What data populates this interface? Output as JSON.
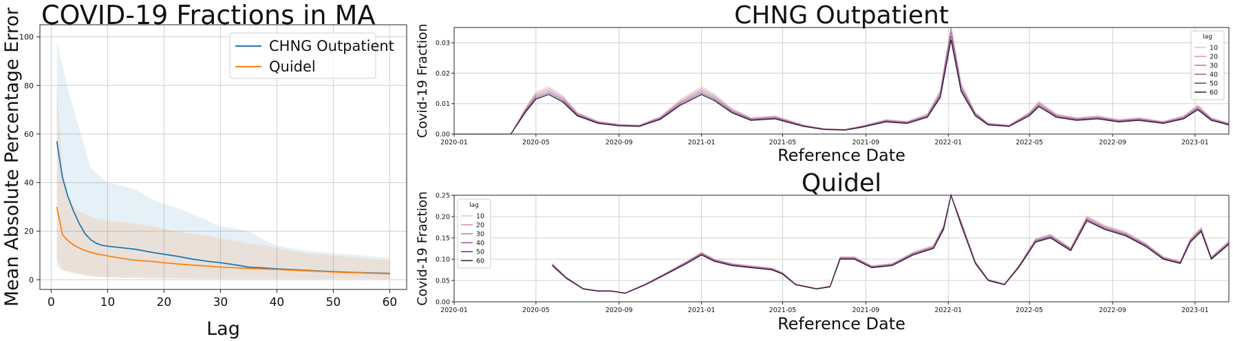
{
  "chart_data": [
    {
      "type": "line",
      "title": "COVID-19 Fractions in MA",
      "xlabel": "Lag",
      "ylabel": "Mean Absolute Percentage Error",
      "xlim": [
        -2,
        63
      ],
      "ylim": [
        -4,
        105
      ],
      "xticks": [
        0,
        10,
        20,
        30,
        40,
        50,
        60
      ],
      "yticks": [
        0,
        20,
        40,
        60,
        80,
        100
      ],
      "grid": true,
      "legend": "top-right",
      "series": [
        {
          "name": "CHNG Outpatient",
          "color": "#1f77b4",
          "x": [
            1,
            2,
            3,
            4,
            5,
            6,
            7,
            8,
            9,
            10,
            12,
            15,
            18,
            20,
            22,
            25,
            28,
            30,
            33,
            35,
            38,
            40,
            45,
            50,
            55,
            60
          ],
          "y": [
            57,
            42,
            34,
            28,
            23,
            19,
            16.5,
            15,
            14.2,
            13.8,
            13.3,
            12.5,
            11.2,
            10.5,
            9.8,
            8.5,
            7.5,
            7.0,
            6.0,
            5.2,
            4.8,
            4.5,
            3.9,
            3.3,
            2.9,
            2.6
          ],
          "upper": [
            98,
            88,
            78,
            70,
            62,
            54,
            46,
            44,
            42,
            40,
            39,
            37,
            33,
            31,
            30,
            27,
            24,
            22,
            21,
            20,
            16,
            14,
            12,
            11,
            10,
            9
          ],
          "lower": [
            5,
            4,
            3.5,
            3,
            2.5,
            2,
            1.5,
            1.2,
            1,
            1,
            0.8,
            0.7,
            0.6,
            0.5,
            0.5,
            0.4,
            0.4,
            0.3,
            0.3,
            0.3,
            0.3,
            0.3,
            0.3,
            0.3,
            0.3,
            0.3
          ]
        },
        {
          "name": "Quidel",
          "color": "#ff7f0e",
          "x": [
            1,
            2,
            3,
            4,
            5,
            6,
            7,
            8,
            9,
            10,
            12,
            15,
            18,
            20,
            22,
            25,
            28,
            30,
            33,
            35,
            38,
            40,
            45,
            50,
            55,
            60
          ],
          "y": [
            30,
            18.5,
            16,
            14.3,
            13,
            12,
            11.3,
            10.7,
            10.2,
            9.8,
            9.0,
            8.0,
            7.5,
            7.0,
            6.6,
            6.0,
            5.6,
            5.2,
            4.9,
            4.7,
            4.4,
            4.2,
            3.7,
            3.2,
            2.8,
            2.4
          ],
          "upper": [
            80,
            45,
            35,
            30,
            28,
            27,
            26,
            25,
            25,
            24,
            24,
            23,
            22,
            21,
            20,
            19,
            18,
            17,
            16,
            15,
            14,
            13,
            11,
            10,
            9,
            8
          ],
          "lower": [
            8,
            4,
            3,
            2.5,
            2,
            1.8,
            1.6,
            1.4,
            1.2,
            1,
            0.9,
            0.8,
            0.7,
            0.6,
            0.5,
            0.5,
            0.4,
            0.4,
            0.4,
            0.3,
            0.3,
            0.3,
            0.3,
            0.3,
            0.3,
            0.3
          ]
        }
      ]
    },
    {
      "type": "line",
      "title": "CHNG Outpatient",
      "xlabel": "Reference Date",
      "ylabel": "Covid-19 Fraction",
      "xlim": [
        "2020-01-01",
        "2023-02-20"
      ],
      "ylim": [
        0,
        0.035
      ],
      "xticks": [
        "2020-01",
        "2020-05",
        "2020-09",
        "2021-01",
        "2021-05",
        "2021-09",
        "2022-01",
        "2022-05",
        "2022-09",
        "2023-01"
      ],
      "yticks": [
        "0.00",
        "0.01",
        "0.02",
        "0.03"
      ],
      "grid": true,
      "legend": "top-right",
      "legend_title": "lag",
      "lags": [
        "10",
        "20",
        "30",
        "40",
        "50",
        "60"
      ],
      "lag_colors": [
        "#ebc0c0",
        "#d88fa0",
        "#b8739a",
        "#8f5a8f",
        "#5f3a6d",
        "#2d1b3d"
      ],
      "x": [
        "2020-01-01",
        "2020-03-25",
        "2020-04-15",
        "2020-05-01",
        "2020-05-20",
        "2020-06-10",
        "2020-07-01",
        "2020-08-01",
        "2020-09-01",
        "2020-10-01",
        "2020-11-01",
        "2020-12-01",
        "2021-01-01",
        "2021-01-20",
        "2021-02-15",
        "2021-03-15",
        "2021-04-20",
        "2021-05-10",
        "2021-06-01",
        "2021-07-01",
        "2021-08-01",
        "2021-08-25",
        "2021-10-01",
        "2021-11-01",
        "2021-12-01",
        "2021-12-20",
        "2022-01-05",
        "2022-01-20",
        "2022-02-10",
        "2022-03-01",
        "2022-04-01",
        "2022-05-01",
        "2022-05-15",
        "2022-06-10",
        "2022-07-10",
        "2022-08-10",
        "2022-09-10",
        "2022-10-10",
        "2022-11-15",
        "2022-12-15",
        "2023-01-05",
        "2023-01-25",
        "2023-02-20"
      ],
      "y": [
        0.0,
        0.0,
        0.007,
        0.0115,
        0.013,
        0.0105,
        0.006,
        0.0035,
        0.0027,
        0.0025,
        0.0048,
        0.0095,
        0.013,
        0.011,
        0.007,
        0.0045,
        0.005,
        0.0038,
        0.0025,
        0.0015,
        0.0013,
        0.0022,
        0.004,
        0.0035,
        0.0055,
        0.012,
        0.031,
        0.014,
        0.006,
        0.003,
        0.0025,
        0.006,
        0.009,
        0.0055,
        0.0045,
        0.005,
        0.004,
        0.0045,
        0.0035,
        0.005,
        0.008,
        0.0045,
        0.003
      ]
    },
    {
      "type": "line",
      "title": "Quidel",
      "xlabel": "Reference Date",
      "ylabel": "Covid-19 Fraction",
      "xlim": [
        "2020-01-01",
        "2023-02-20"
      ],
      "ylim": [
        0,
        0.25
      ],
      "xticks": [
        "2020-01",
        "2020-05",
        "2020-09",
        "2021-01",
        "2021-05",
        "2021-09",
        "2022-01",
        "2022-05",
        "2022-09",
        "2023-01"
      ],
      "yticks": [
        "0.00",
        "0.05",
        "0.10",
        "0.15",
        "0.20",
        "0.25"
      ],
      "grid": true,
      "legend": "top-left",
      "legend_title": "lag",
      "lags": [
        "10",
        "20",
        "30",
        "40",
        "50",
        "60"
      ],
      "lag_colors": [
        "#ebc0c0",
        "#d88fa0",
        "#b8739a",
        "#8f5a8f",
        "#5f3a6d",
        "#2d1b3d"
      ],
      "x": [
        "2020-05-25",
        "2020-06-15",
        "2020-07-10",
        "2020-08-01",
        "2020-08-20",
        "2020-09-10",
        "2020-10-10",
        "2020-11-10",
        "2020-12-10",
        "2021-01-01",
        "2021-01-20",
        "2021-02-15",
        "2021-03-15",
        "2021-04-15",
        "2021-05-01",
        "2021-05-20",
        "2021-06-20",
        "2021-07-10",
        "2021-07-25",
        "2021-08-15",
        "2021-09-10",
        "2021-10-10",
        "2021-11-10",
        "2021-12-10",
        "2021-12-25",
        "2022-01-05",
        "2022-01-20",
        "2022-02-10",
        "2022-03-01",
        "2022-03-25",
        "2022-04-15",
        "2022-05-10",
        "2022-06-01",
        "2022-07-01",
        "2022-07-25",
        "2022-08-20",
        "2022-09-20",
        "2022-10-20",
        "2022-11-15",
        "2022-12-10",
        "2022-12-25",
        "2023-01-10",
        "2023-01-25",
        "2023-02-20"
      ],
      "y": [
        0.085,
        0.055,
        0.03,
        0.025,
        0.025,
        0.02,
        0.04,
        0.065,
        0.09,
        0.11,
        0.095,
        0.085,
        0.08,
        0.075,
        0.065,
        0.04,
        0.03,
        0.035,
        0.1,
        0.1,
        0.08,
        0.085,
        0.11,
        0.125,
        0.17,
        0.25,
        0.18,
        0.09,
        0.05,
        0.04,
        0.08,
        0.14,
        0.15,
        0.12,
        0.19,
        0.17,
        0.155,
        0.13,
        0.1,
        0.09,
        0.14,
        0.165,
        0.1,
        0.135
      ]
    }
  ]
}
